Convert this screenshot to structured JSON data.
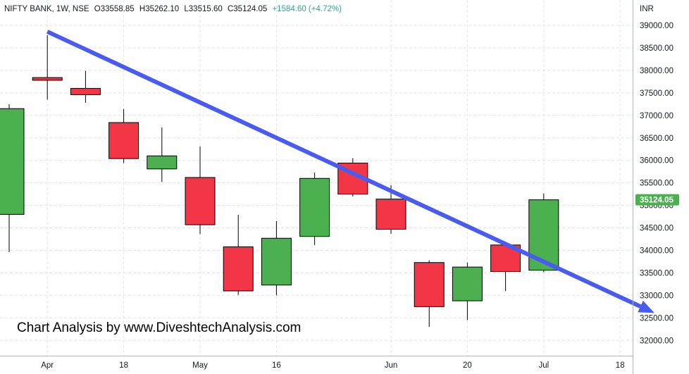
{
  "header": {
    "symbol": "NIFTY BANK, 1W, NSE",
    "open": "O33558.85",
    "high": "H35262.10",
    "low": "L33515.60",
    "close": "C35124.05",
    "change": "+1584.60 (+4.72%)"
  },
  "currency": "INR",
  "watermark": "Chart Analysis by www.DiveshtechAnalysis.com",
  "colors": {
    "up": "#4caf50",
    "down": "#f23645",
    "trendline": "#4a5cf0",
    "last_price_tag": "#4caf50",
    "grid": "#e0e3eb"
  },
  "chart_data": {
    "type": "candlestick",
    "title": "NIFTY BANK, 1W, NSE",
    "ylabel": "INR",
    "ylim": [
      31800,
      39200
    ],
    "y_ticks": [
      "32000.00",
      "32500.00",
      "33000.00",
      "33500.00",
      "34000.00",
      "34500.00",
      "35000.00",
      "35500.00",
      "36000.00",
      "36500.00",
      "37000.00",
      "37500.00",
      "38000.00",
      "38500.00",
      "39000.00"
    ],
    "x_ticks": [
      {
        "label": "Apr",
        "index": 1
      },
      {
        "label": "18",
        "index": 3
      },
      {
        "label": "May",
        "index": 5
      },
      {
        "label": "16",
        "index": 7
      },
      {
        "label": "Jun",
        "index": 10
      },
      {
        "label": "20",
        "index": 12
      },
      {
        "label": "Jul",
        "index": 14
      },
      {
        "label": "18",
        "index": 16
      }
    ],
    "candles": [
      {
        "index": 0,
        "open": 34800,
        "high": 37250,
        "low": 33960,
        "close": 37150
      },
      {
        "index": 1,
        "open": 37840,
        "high": 38780,
        "low": 37350,
        "close": 37780
      },
      {
        "index": 2,
        "open": 37600,
        "high": 37990,
        "low": 37280,
        "close": 37460
      },
      {
        "index": 3,
        "open": 36840,
        "high": 37140,
        "low": 35940,
        "close": 36040
      },
      {
        "index": 4,
        "open": 35810,
        "high": 36730,
        "low": 35520,
        "close": 36100
      },
      {
        "index": 5,
        "open": 35620,
        "high": 36310,
        "low": 34360,
        "close": 34570
      },
      {
        "index": 6,
        "open": 34080,
        "high": 34790,
        "low": 33010,
        "close": 33100
      },
      {
        "index": 7,
        "open": 33230,
        "high": 34650,
        "low": 33000,
        "close": 34270
      },
      {
        "index": 8,
        "open": 34310,
        "high": 35730,
        "low": 34120,
        "close": 35600
      },
      {
        "index": 9,
        "open": 35940,
        "high": 36050,
        "low": 35200,
        "close": 35250
      },
      {
        "index": 10,
        "open": 35140,
        "high": 35450,
        "low": 34370,
        "close": 34470
      },
      {
        "index": 11,
        "open": 33730,
        "high": 33780,
        "low": 32300,
        "close": 32750
      },
      {
        "index": 12,
        "open": 32880,
        "high": 33730,
        "low": 32450,
        "close": 33630
      },
      {
        "index": 13,
        "open": 34120,
        "high": 34150,
        "low": 33100,
        "close": 33530
      },
      {
        "index": 14,
        "open": 33558.85,
        "high": 35262.1,
        "low": 33515.6,
        "close": 35124.05
      }
    ],
    "last_price": "35124.05",
    "trendline": {
      "start": {
        "index": 1,
        "price": 38860
      },
      "end": {
        "index": 16.9,
        "price": 32610
      },
      "arrow": true
    },
    "grid": true
  }
}
